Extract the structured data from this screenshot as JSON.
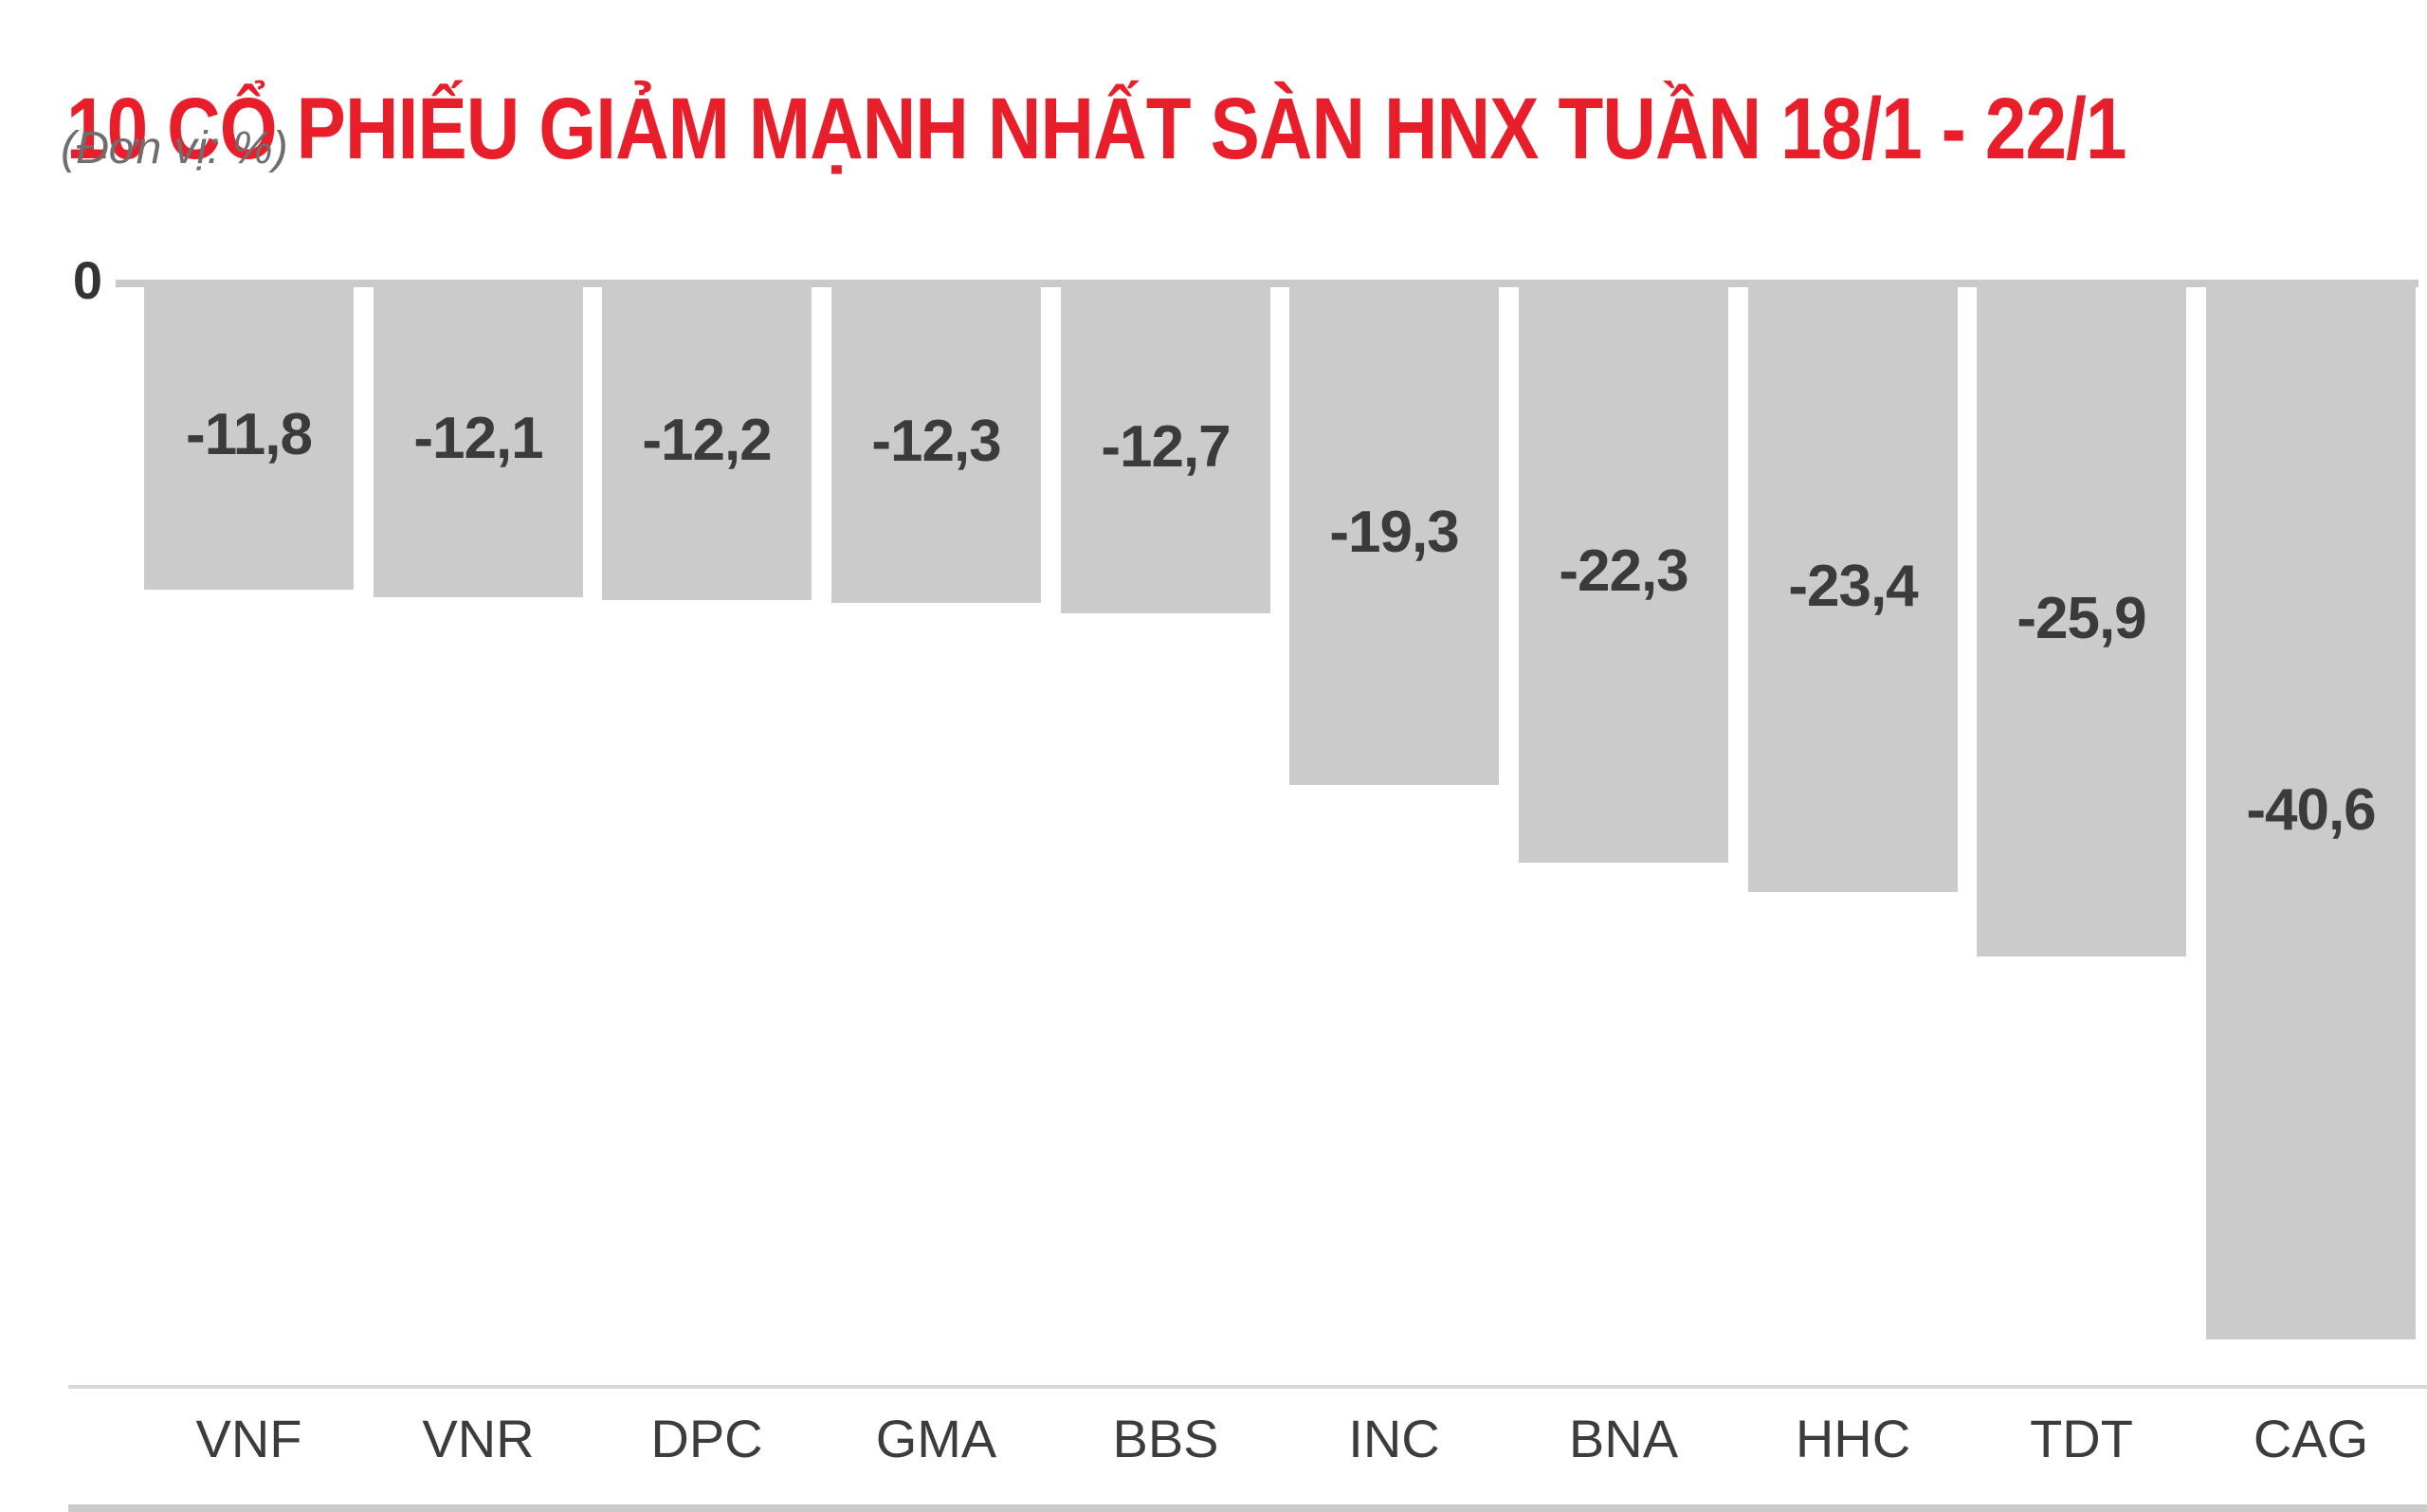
{
  "header": {
    "title": "10 CỔ PHIẾU GIẢM MẠNH NHẤT SÀN HNX TUẦN 18/1 - 22/1",
    "subtitle": "(Đơn vị: %)"
  },
  "chart_data": {
    "type": "bar",
    "title": "10 CỔ PHIẾU GIẢM MẠNH NHẤT SÀN HNX TUẦN 18/1 - 22/1",
    "unit_label": "(Đơn vị: %)",
    "categories": [
      "VNF",
      "VNR",
      "DPC",
      "GMA",
      "BBS",
      "INC",
      "BNA",
      "HHC",
      "TDT",
      "CAG"
    ],
    "values": [
      -11.8,
      -12.1,
      -12.2,
      -12.3,
      -12.7,
      -19.3,
      -22.3,
      -23.4,
      -25.9,
      -40.6
    ],
    "value_labels": [
      "-11,8",
      "-12,1",
      "-12,2",
      "-12,3",
      "-12,7",
      "-19,3",
      "-22,3",
      "-23,4",
      "-25,9",
      "-40,6"
    ],
    "y_axis": {
      "zero_label": "0",
      "ylim": [
        -42,
        0
      ],
      "grid": false,
      "legend": false
    },
    "layout_hint": "bars hang downward from the zero baseline; value labels centered inside bars; category labels below chart",
    "colors": {
      "title": "#e81e2a",
      "subtitle": "#6e6e6e",
      "bar_fill": "#cbcbcb",
      "axis_line": "#c9c9c9",
      "value_label": "#3b3b3b",
      "category_label": "#3c3c3c",
      "zero_label": "#333333",
      "separator": "#d8d8d8",
      "bottom_strip": "#cbcbcb",
      "background": "#ffffff"
    }
  }
}
